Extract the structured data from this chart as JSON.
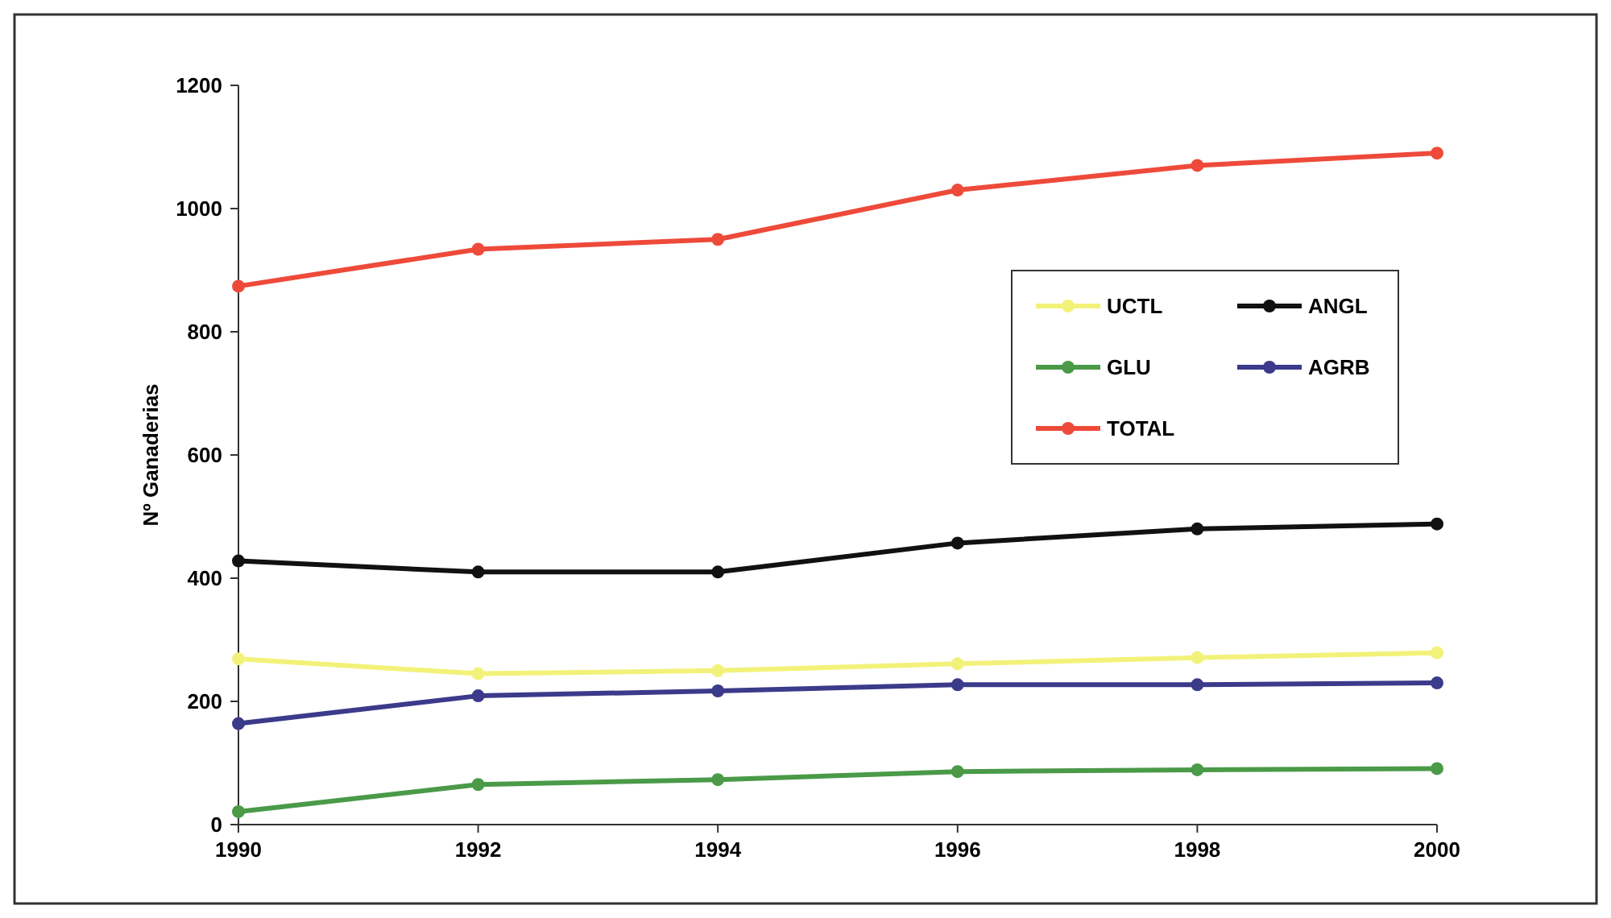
{
  "chart_data": {
    "type": "line",
    "ylabel": "Nº Ganaderias",
    "x": [
      1990,
      1992,
      1994,
      1996,
      1998,
      2000
    ],
    "xlim": [
      1990,
      2000
    ],
    "xticks": [
      1990,
      1992,
      1994,
      1996,
      1998,
      2000
    ],
    "ylim": [
      0,
      1200
    ],
    "yticks": [
      0,
      200,
      400,
      600,
      800,
      1000,
      1200
    ],
    "marker": "circle",
    "legend": "right",
    "grid": false,
    "series": [
      {
        "name": "UCTL",
        "color": "#f2f27a",
        "values": [
          269,
          245,
          250,
          261,
          271,
          279
        ]
      },
      {
        "name": "ANGL",
        "color": "#111111",
        "values": [
          428,
          410,
          410,
          457,
          480,
          488
        ]
      },
      {
        "name": "GLU",
        "color": "#4a9a48",
        "values": [
          21,
          65,
          73,
          86,
          89,
          91
        ]
      },
      {
        "name": "AGRB",
        "color": "#3c3a8a",
        "values": [
          164,
          209,
          217,
          227,
          227,
          230
        ]
      },
      {
        "name": "TOTAL",
        "color": "#ee4a3a",
        "values": [
          874,
          934,
          950,
          1030,
          1070,
          1090
        ]
      }
    ]
  }
}
